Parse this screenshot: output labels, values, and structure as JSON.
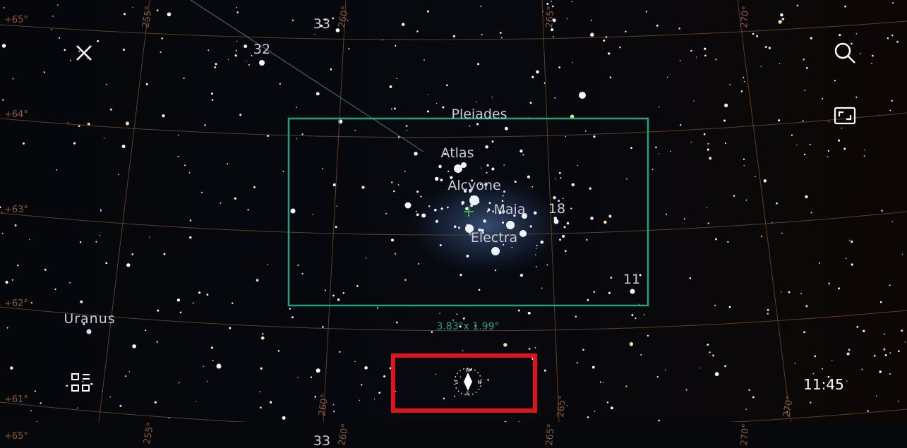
{
  "grid_labels": {
    "dec": [
      "+65°",
      "+64°",
      "+63°",
      "+62°",
      "+61°"
    ],
    "ra": [
      "255°",
      "260°",
      "265°",
      "270°"
    ]
  },
  "objects": [
    {
      "label": "33"
    },
    {
      "label": "32"
    },
    {
      "label": "Atlas"
    },
    {
      "label": "Alcyone"
    },
    {
      "label": "Maia"
    },
    {
      "label": "18"
    },
    {
      "label": "Electra"
    },
    {
      "label": "11"
    },
    {
      "label": "Uranus"
    }
  ],
  "frame": {
    "title": "Pleiades",
    "size": "3.83°x 1.99°"
  },
  "compass": [
    "W",
    "N",
    "E",
    "S"
  ],
  "clock": "11:45"
}
